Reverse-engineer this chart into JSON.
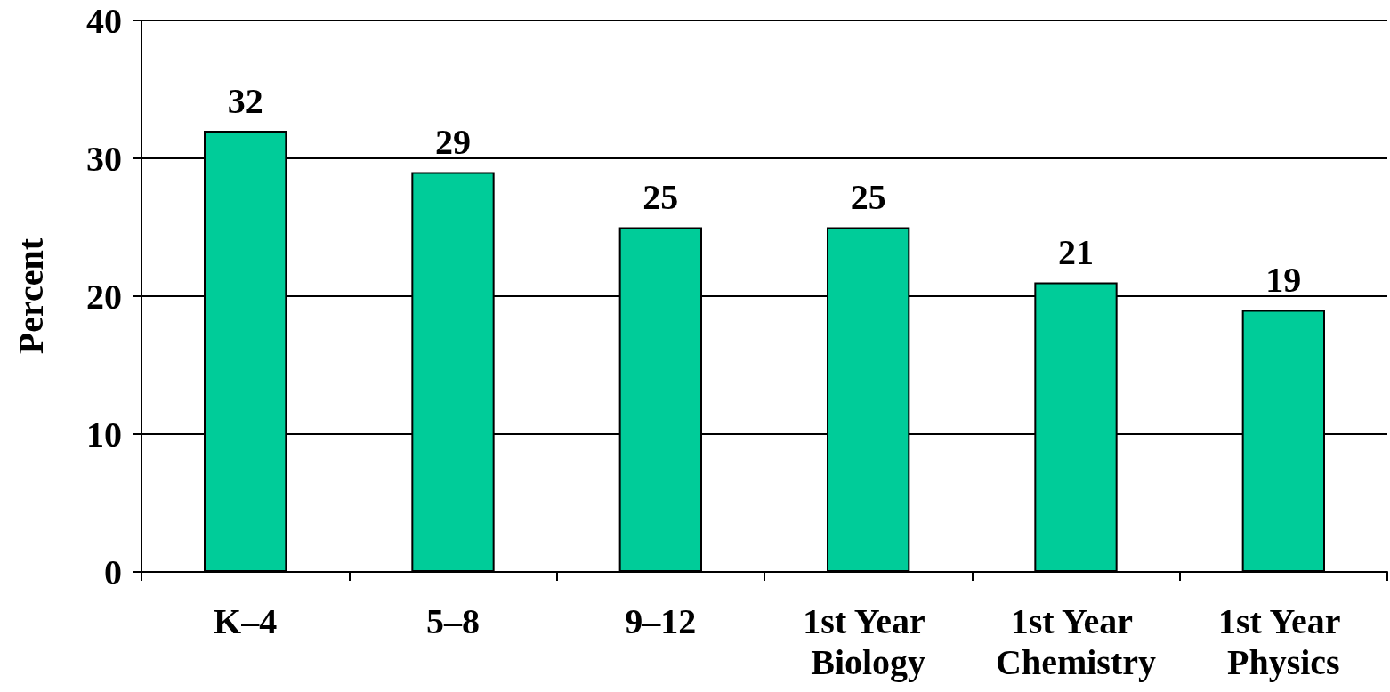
{
  "chart_data": {
    "type": "bar",
    "ylabel": "Percent",
    "categories": [
      "K–4",
      "5–8",
      "9–12",
      "1st Year Biology",
      "1st Year Chemistry",
      "1st Year Physics"
    ],
    "values": [
      32,
      29,
      25,
      25,
      21,
      19
    ],
    "color": "#00cc99",
    "ylim": [
      0,
      40
    ],
    "yticks": [
      0,
      10,
      20,
      30,
      40
    ],
    "grid": "y",
    "data_labels": true
  }
}
